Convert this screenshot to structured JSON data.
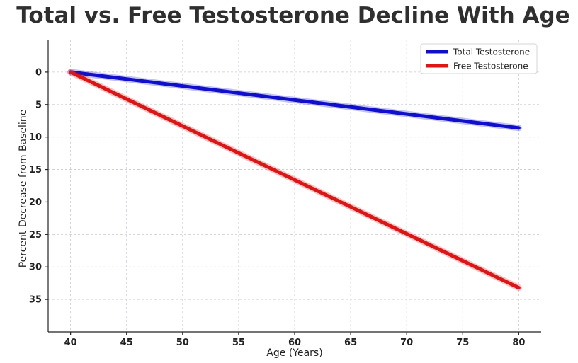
{
  "chart_data": {
    "type": "line",
    "title": "Total vs. Free Testosterone Decline With Age",
    "xlabel": "Age (Years)",
    "ylabel": "Percent Decrease from Baseline",
    "xlim": [
      38,
      82
    ],
    "ylim": [
      40,
      -5
    ],
    "y_inverted": true,
    "x_ticks": [
      40,
      45,
      50,
      55,
      60,
      65,
      70,
      75,
      80
    ],
    "y_ticks": [
      0,
      5,
      10,
      15,
      20,
      25,
      30,
      35
    ],
    "grid": true,
    "legend_position": "top-right",
    "series": [
      {
        "name": "Total Testosterone",
        "color": "#1010cc",
        "x": [
          40,
          80
        ],
        "y": [
          0,
          8.6
        ]
      },
      {
        "name": "Free Testosterone",
        "color": "#dd1515",
        "x": [
          40,
          80
        ],
        "y": [
          0,
          33.2
        ]
      }
    ]
  }
}
